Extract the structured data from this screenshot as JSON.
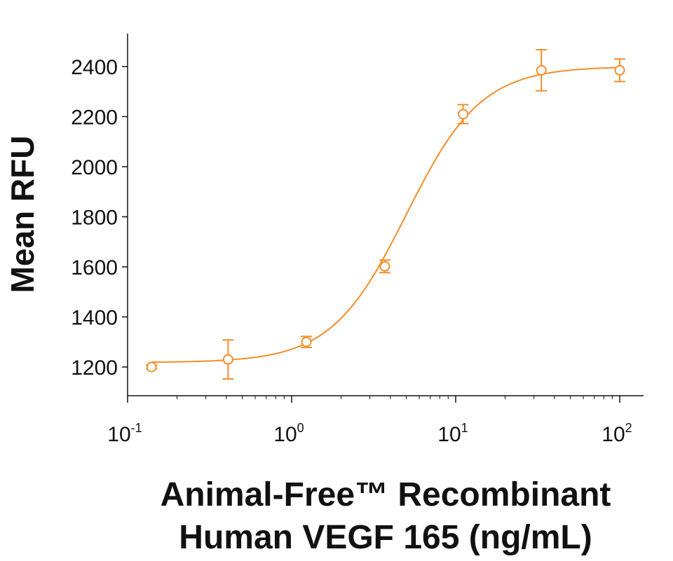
{
  "chart_data": {
    "type": "scatter",
    "x_scale": "log",
    "xlim": [
      0.1,
      130
    ],
    "ylim": [
      1100,
      2540
    ],
    "series": [
      {
        "name": "Animal-Free Recombinant Human VEGF 165",
        "color": "#F28E2B",
        "marker": "open-circle",
        "x": [
          0.14,
          0.41,
          1.23,
          3.7,
          11.1,
          33.3,
          100
        ],
        "y": [
          1200,
          1230,
          1300,
          1602,
          2210,
          2385,
          2385
        ],
        "error": [
          8,
          78,
          22,
          25,
          38,
          82,
          45
        ],
        "fit": {
          "model": "4PL",
          "bottom": 1218,
          "top": 2400,
          "ec50": 5.0,
          "hill": 1.9
        }
      }
    ],
    "y_ticks": [
      1200,
      1400,
      1600,
      1800,
      2000,
      2200,
      2400
    ],
    "y_tick_labels": [
      "1200",
      "1400",
      "1600",
      "1800",
      "2000",
      "2200",
      "2400"
    ],
    "x_decades": [
      -1,
      0,
      1,
      2
    ],
    "x_tick_labels": [
      {
        "base": "10",
        "exp": "-1"
      },
      {
        "base": "10",
        "exp": "0"
      },
      {
        "base": "10",
        "exp": "1"
      },
      {
        "base": "10",
        "exp": "2"
      }
    ],
    "ylabel": "Mean RFU",
    "xlabel_line1": "Animal-Free™ Recombinant",
    "xlabel_line2": "Human VEGF 165 (ng/mL)"
  }
}
